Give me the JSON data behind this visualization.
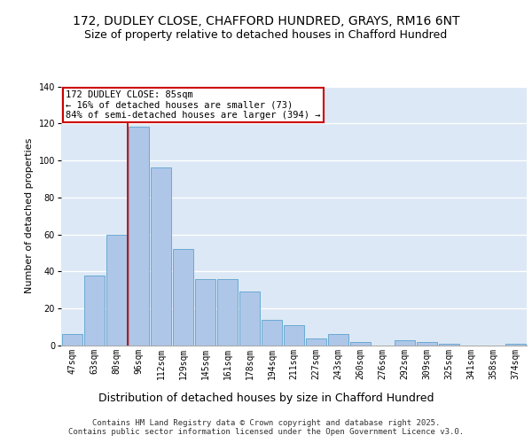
{
  "title": "172, DUDLEY CLOSE, CHAFFORD HUNDRED, GRAYS, RM16 6NT",
  "subtitle": "Size of property relative to detached houses in Chafford Hundred",
  "xlabel": "Distribution of detached houses by size in Chafford Hundred",
  "ylabel": "Number of detached properties",
  "categories": [
    "47sqm",
    "63sqm",
    "80sqm",
    "96sqm",
    "112sqm",
    "129sqm",
    "145sqm",
    "161sqm",
    "178sqm",
    "194sqm",
    "211sqm",
    "227sqm",
    "243sqm",
    "260sqm",
    "276sqm",
    "292sqm",
    "309sqm",
    "325sqm",
    "341sqm",
    "358sqm",
    "374sqm"
  ],
  "values": [
    6,
    38,
    60,
    118,
    96,
    52,
    36,
    36,
    29,
    14,
    11,
    4,
    6,
    2,
    0,
    3,
    2,
    1,
    0,
    0,
    1
  ],
  "bar_color": "#aec6e8",
  "bar_edge_color": "#6aaad4",
  "property_line_x": 2.5,
  "annotation_text": "172 DUDLEY CLOSE: 85sqm\n← 16% of detached houses are smaller (73)\n84% of semi-detached houses are larger (394) →",
  "annotation_box_color": "#ffffff",
  "annotation_box_edge_color": "#cc0000",
  "vline_color": "#cc0000",
  "ylim": [
    0,
    140
  ],
  "yticks": [
    0,
    20,
    40,
    60,
    80,
    100,
    120,
    140
  ],
  "background_color": "#dce8f5",
  "grid_color": "#ffffff",
  "footer1": "Contains HM Land Registry data © Crown copyright and database right 2025.",
  "footer2": "Contains public sector information licensed under the Open Government Licence v3.0.",
  "title_fontsize": 10,
  "subtitle_fontsize": 9,
  "xlabel_fontsize": 9,
  "ylabel_fontsize": 8,
  "tick_fontsize": 7,
  "annot_fontsize": 7.5,
  "footer_fontsize": 6.5
}
